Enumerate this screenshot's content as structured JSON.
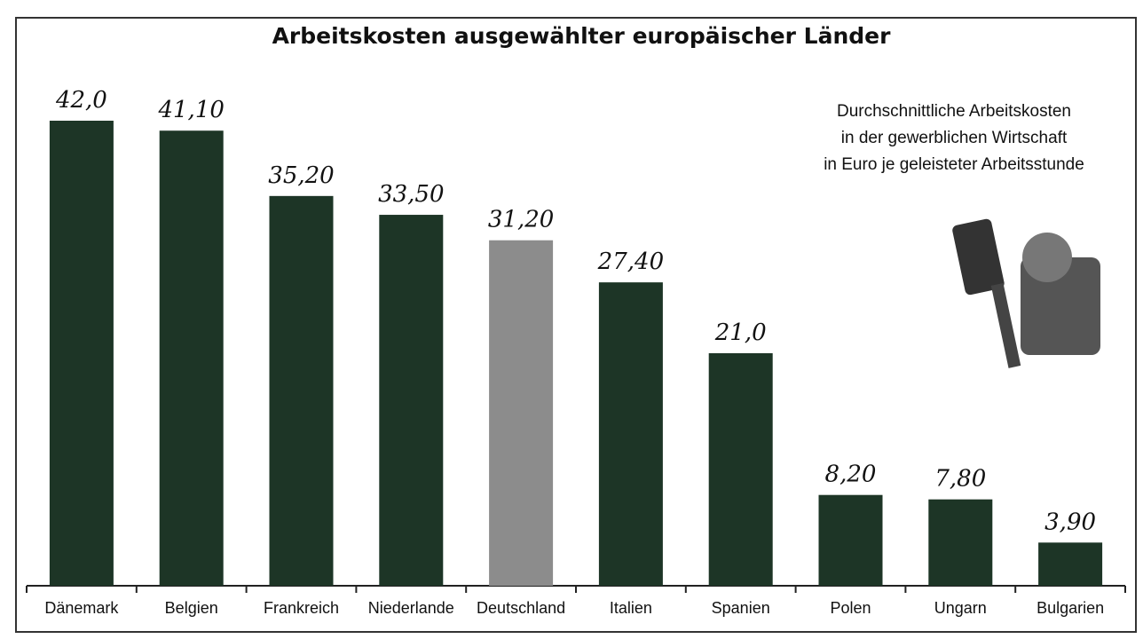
{
  "chart_data": {
    "type": "bar",
    "title": "Arbeitskosten ausgewählter europäischer Länder",
    "subtitle": [
      "Durchschnittliche Arbeitskosten",
      "in der gewerblichen Wirtschaft",
      "in Euro je geleisteter Arbeitsstunde"
    ],
    "categories": [
      "Dänemark",
      "Belgien",
      "Frankreich",
      "Niederlande",
      "Deutschland",
      "Italien",
      "Spanien",
      "Polen",
      "Ungarn",
      "Bulgarien"
    ],
    "values": [
      42.0,
      41.1,
      35.2,
      33.5,
      31.2,
      27.4,
      21.0,
      8.2,
      7.8,
      3.9
    ],
    "value_labels": [
      "42,0",
      "41,10",
      "35,20",
      "33,50",
      "31,20",
      "27,40",
      "21,0",
      "8,20",
      "7,80",
      "3,90"
    ],
    "colors": [
      "#1d3526",
      "#1d3526",
      "#1d3526",
      "#1d3526",
      "#8c8c8c",
      "#1d3526",
      "#1d3526",
      "#1d3526",
      "#1d3526",
      "#1d3526"
    ]
  }
}
